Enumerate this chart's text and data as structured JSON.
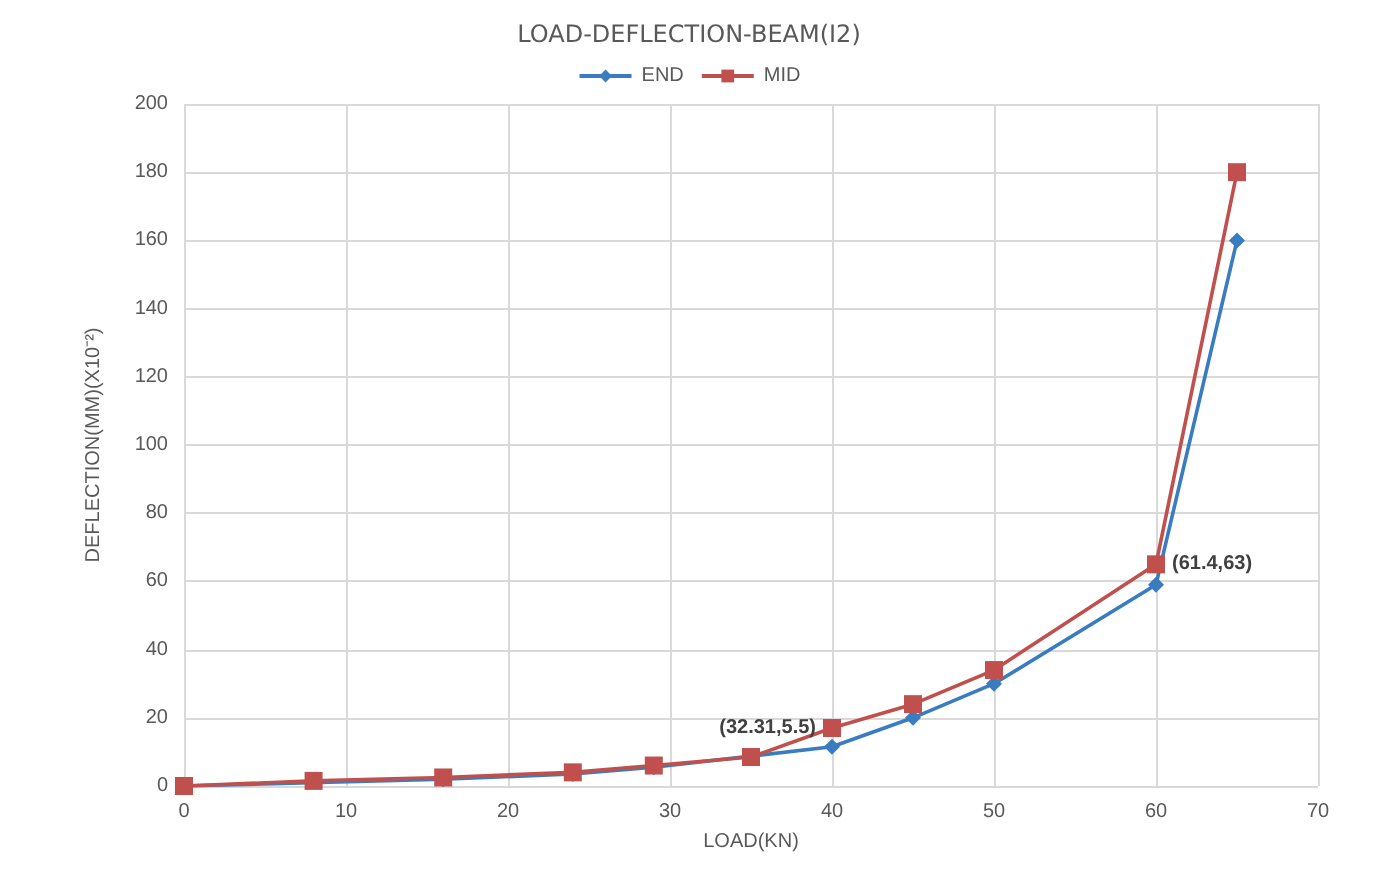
{
  "chart_data": {
    "type": "line",
    "title": "LOAD-DEFLECTION-BEAM(I2)",
    "xlabel": "LOAD(KN)",
    "ylabel": "DEFLECTION(MM)(X10⁻²)",
    "x": [
      0,
      8,
      16,
      24,
      29,
      35,
      40,
      45,
      50,
      60,
      65
    ],
    "series": [
      {
        "name": "END",
        "color": "#3a7cc0",
        "marker": "diamond",
        "values": [
          0,
          null,
          2,
          3.5,
          5.5,
          null,
          11.5,
          20,
          30,
          59,
          160
        ]
      },
      {
        "name": "MID",
        "color": "#c0504d",
        "marker": "square",
        "values": [
          0,
          1.5,
          2.5,
          4,
          6,
          8.5,
          17,
          24,
          34,
          65,
          180
        ]
      }
    ],
    "annotations": [
      {
        "text": "(32.31,5.5)",
        "x": 40,
        "y": 17
      },
      {
        "text": "(61.4,63)",
        "x": 60,
        "y": 65
      }
    ],
    "xlim": [
      0,
      70
    ],
    "xticks": [
      0,
      10,
      20,
      30,
      40,
      50,
      60,
      70
    ],
    "ylim": [
      0,
      200
    ],
    "yticks": [
      0,
      20,
      40,
      60,
      80,
      100,
      120,
      140,
      160,
      180,
      200
    ],
    "grid": true,
    "legend": "top",
    "line_style": "solid"
  }
}
